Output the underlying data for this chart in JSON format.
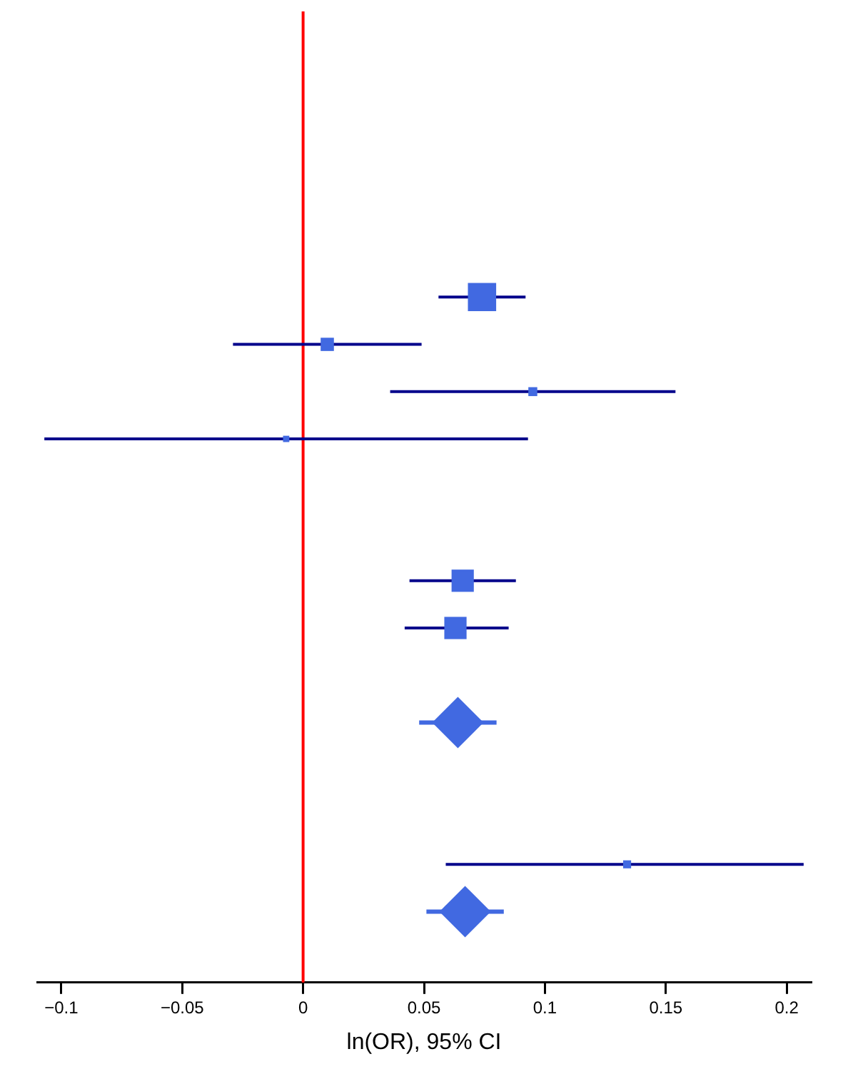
{
  "chart_data": {
    "type": "scatter",
    "orientation": "horizontal",
    "xlabel": "ln(OR), 95% CI",
    "categories": [
      null,
      null,
      null,
      null,
      null,
      null,
      null,
      null,
      null,
      null,
      null,
      null,
      null,
      null,
      null,
      null,
      null,
      null,
      null,
      null
    ],
    "xlim": [
      -0.11,
      0.21
    ],
    "xticks": [
      {
        "value": -0.1,
        "label": "−0.1"
      },
      {
        "value": -0.05,
        "label": "−0.05"
      },
      0,
      0.05,
      0.1,
      0.15,
      0.2
    ],
    "grid": false,
    "legend": false,
    "tick_labels": "x",
    "ref_lines": [
      {
        "axis": "x",
        "value": 0,
        "color": "#ff0000"
      }
    ],
    "series": [
      {
        "type": "bubble",
        "marker": "square",
        "color": "#4169e1",
        "values": [
          null,
          null,
          null,
          null,
          null,
          0.074,
          0.01,
          0.095,
          -0.007,
          null,
          null,
          0.066,
          0.063,
          null,
          null,
          null,
          null,
          0.134,
          null,
          null
        ],
        "errors": [
          null,
          null,
          null,
          null,
          null,
          [
            0.056,
            0.092
          ],
          [
            -0.029,
            0.049
          ],
          [
            0.036,
            0.154
          ],
          [
            -0.107,
            0.093
          ],
          null,
          null,
          [
            0.044,
            0.088
          ],
          [
            0.042,
            0.085
          ],
          null,
          null,
          null,
          null,
          [
            0.059,
            0.207
          ],
          null,
          null
        ],
        "sizes": [
          null,
          null,
          null,
          null,
          null,
          1,
          0.22,
          0.1,
          0.05,
          null,
          null,
          0.62,
          0.62,
          null,
          null,
          null,
          null,
          0.08,
          null,
          null
        ]
      },
      {
        "type": "scatter",
        "marker": "diamond",
        "color": "#4169e1",
        "values": [
          null,
          null,
          null,
          null,
          null,
          null,
          null,
          null,
          null,
          null,
          null,
          null,
          null,
          null,
          0.064,
          null,
          null,
          null,
          0.067,
          null
        ],
        "errors": [
          null,
          null,
          null,
          null,
          null,
          null,
          null,
          null,
          null,
          null,
          null,
          null,
          null,
          null,
          [
            0.048,
            0.08
          ],
          null,
          null,
          null,
          [
            0.051,
            0.083
          ],
          null
        ]
      }
    ]
  }
}
